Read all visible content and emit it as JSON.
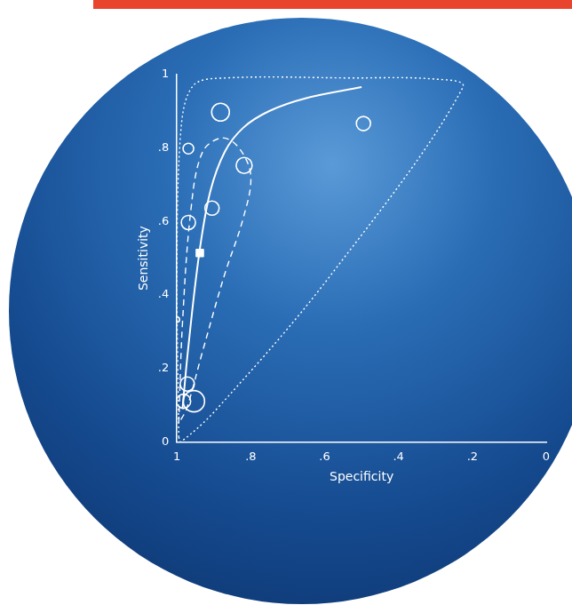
{
  "chart_data": {
    "type": "scatter",
    "x_label": "Specificity",
    "y_label": "Sensitivity",
    "xlim": [
      1,
      0
    ],
    "ylim": [
      0,
      1
    ],
    "xticks": [
      {
        "value": 1,
        "label": "1"
      },
      {
        "value": 0.8,
        "label": ".8"
      },
      {
        "value": 0.6,
        "label": ".6"
      },
      {
        "value": 0.4,
        "label": ".4"
      },
      {
        "value": 0.2,
        "label": ".2"
      },
      {
        "value": 0,
        "label": "0"
      }
    ],
    "yticks": [
      {
        "value": 0,
        "label": "0"
      },
      {
        "value": 0.2,
        "label": ".2"
      },
      {
        "value": 0.4,
        "label": ".4"
      },
      {
        "value": 0.6,
        "label": ".6"
      },
      {
        "value": 0.8,
        "label": ".8"
      },
      {
        "value": 1,
        "label": "1"
      }
    ],
    "grid": false,
    "series": [
      {
        "type": "bubble",
        "marker": "circle",
        "color": "#ffffff",
        "x": [
          0.882,
          0.495,
          0.969,
          0.818,
          0.905,
          0.969,
          1.0,
          0.972,
          0.954,
          0.982
        ],
        "values": [
          0.897,
          0.866,
          0.798,
          0.752,
          0.636,
          0.597,
          0.333,
          0.158,
          0.111,
          0.111
        ],
        "sizes": [
          10,
          8,
          6,
          9,
          8,
          8,
          3,
          8,
          12,
          8
        ]
      },
      {
        "type": "scatter",
        "marker": "square",
        "color": "#ffffff",
        "x": [
          0.938
        ],
        "values": [
          0.514
        ]
      },
      {
        "type": "line",
        "line_style": "solid",
        "color": "#ffffff",
        "x": [
          0.985,
          0.97,
          0.94,
          0.91,
          0.87,
          0.82,
          0.75,
          0.65,
          0.5
        ],
        "values": [
          0.09,
          0.25,
          0.51,
          0.68,
          0.79,
          0.855,
          0.9,
          0.935,
          0.965
        ]
      },
      {
        "type": "line",
        "line_style": "dashed",
        "color": "#ffffff",
        "x": [
          0.995,
          0.985,
          0.962,
          0.931,
          0.879,
          0.833,
          0.8,
          0.821,
          0.872,
          0.931,
          0.974,
          0.995
        ],
        "values": [
          0.052,
          0.323,
          0.633,
          0.788,
          0.827,
          0.801,
          0.724,
          0.607,
          0.452,
          0.245,
          0.09,
          0.052
        ]
      },
      {
        "type": "line",
        "line_style": "dotted",
        "color": "#ffffff",
        "x": [
          0.995,
          1.0,
          0.99,
          0.956,
          0.867,
          0.533,
          0.303,
          0.226,
          0.585,
          0.892,
          0.99,
          0.995
        ],
        "values": [
          0.013,
          0.452,
          0.84,
          0.969,
          0.99,
          0.99,
          0.987,
          0.964,
          0.452,
          0.09,
          0.0,
          0.013
        ]
      }
    ]
  }
}
